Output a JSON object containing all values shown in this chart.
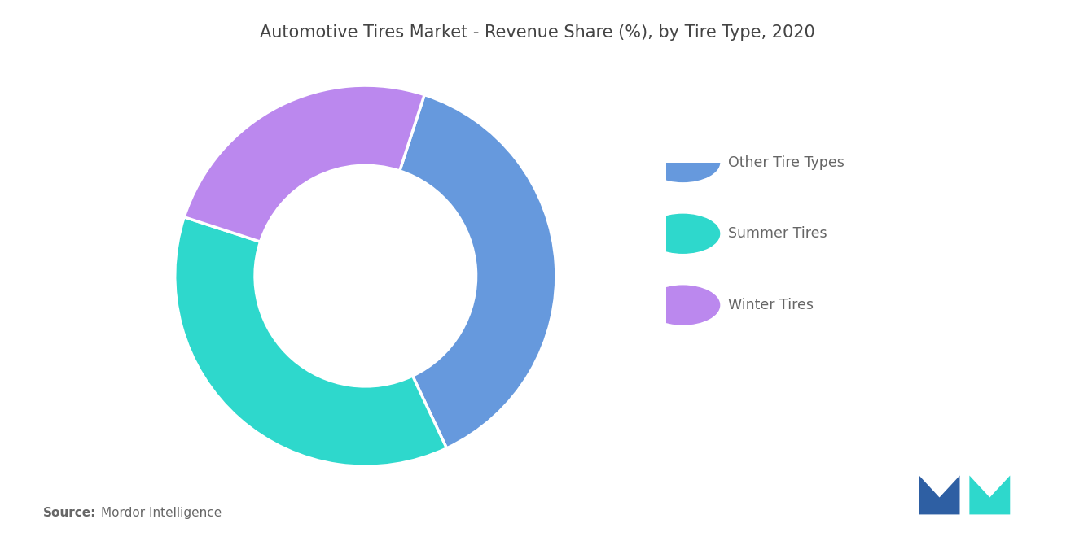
{
  "title": "Automotive Tires Market - Revenue Share (%), by Tire Type, 2020",
  "slices": [
    {
      "label": "Other Tire Types",
      "value": 38,
      "color": "#6699DD"
    },
    {
      "label": "Summer Tires",
      "value": 37,
      "color": "#2ED8CC"
    },
    {
      "label": "Winter Tires",
      "value": 25,
      "color": "#BB88EE"
    }
  ],
  "background_color": "#ffffff",
  "title_fontsize": 15,
  "legend_fontsize": 12.5,
  "source_bold": "Source:",
  "source_normal": "  Mordor Intelligence",
  "donut_width": 0.42,
  "start_angle": 72,
  "counterclock": false
}
